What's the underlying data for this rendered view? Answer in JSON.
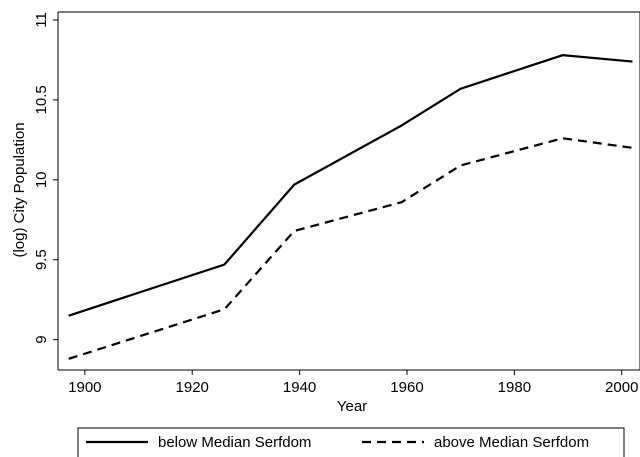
{
  "chart_data": {
    "type": "line",
    "x_label": "Year",
    "y_label": "(log) City Population",
    "x": [
      1897,
      1926,
      1939,
      1959,
      1970,
      1989,
      2002
    ],
    "series": [
      {
        "name": "below Median Serfdom",
        "color": "#000000",
        "dash": "solid",
        "values": [
          9.15,
          9.47,
          9.97,
          10.34,
          10.57,
          10.78,
          10.74
        ]
      },
      {
        "name": "above Median Serfdom",
        "color": "#000000",
        "dash": "dashed",
        "values": [
          8.88,
          9.19,
          9.68,
          9.86,
          10.09,
          10.26,
          10.2
        ]
      }
    ],
    "xlim": [
      1895,
      2003.4
    ],
    "xticks": [
      1900,
      1920,
      1940,
      1960,
      1980,
      2000
    ],
    "ylim": [
      8.81,
      11.05
    ],
    "yticks": [
      9,
      9.5,
      10,
      10.5,
      11
    ],
    "legend": "bottom"
  }
}
